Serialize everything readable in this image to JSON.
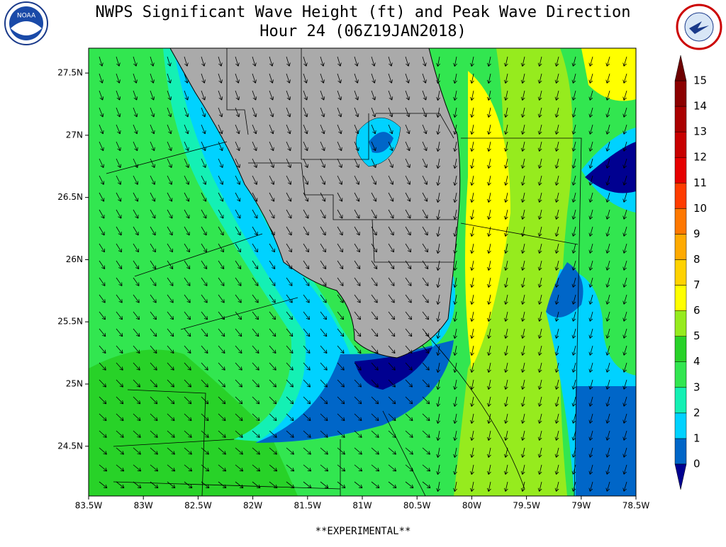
{
  "map": {
    "title": "NWPS Significant Wave Height (ft) and Peak Wave Direction",
    "subtitle": "Hour 24 (06Z19JAN2018)",
    "footer": "**EXPERIMENTAL**",
    "xlim": [
      -83.5,
      -78.5
    ],
    "ylim": [
      24.1,
      27.7
    ],
    "xticks": [
      {
        "value": -83.5,
        "label": "83.5W"
      },
      {
        "value": -83,
        "label": "83W"
      },
      {
        "value": -82.5,
        "label": "82.5W"
      },
      {
        "value": -82,
        "label": "82W"
      },
      {
        "value": -81.5,
        "label": "81.5W"
      },
      {
        "value": -81,
        "label": "81W"
      },
      {
        "value": -80.5,
        "label": "80.5W"
      },
      {
        "value": -80,
        "label": "80W"
      },
      {
        "value": -79.5,
        "label": "79.5W"
      },
      {
        "value": -79,
        "label": "79W"
      },
      {
        "value": -78.5,
        "label": "78.5W"
      }
    ],
    "yticks": [
      {
        "value": 27.5,
        "label": "27.5N"
      },
      {
        "value": 27,
        "label": "27N"
      },
      {
        "value": 26.5,
        "label": "26.5N"
      },
      {
        "value": 26,
        "label": "26N"
      },
      {
        "value": 25.5,
        "label": "25.5N"
      },
      {
        "value": 25,
        "label": "25N"
      },
      {
        "value": 24.5,
        "label": "24.5N"
      }
    ],
    "colorbar": {
      "levels": [
        0,
        1,
        2,
        3,
        4,
        5,
        6,
        7,
        8,
        9,
        10,
        11,
        12,
        13,
        14,
        15
      ],
      "colors": [
        "#0066c8",
        "#00d2ff",
        "#14f0b4",
        "#32e650",
        "#28d228",
        "#96eb1e",
        "#ffff00",
        "#ffd200",
        "#ffaa00",
        "#ff7800",
        "#ff3c00",
        "#e60000",
        "#c80000",
        "#aa0000",
        "#8c0000"
      ],
      "under": "#000090",
      "over": "#6e0000"
    }
  }
}
